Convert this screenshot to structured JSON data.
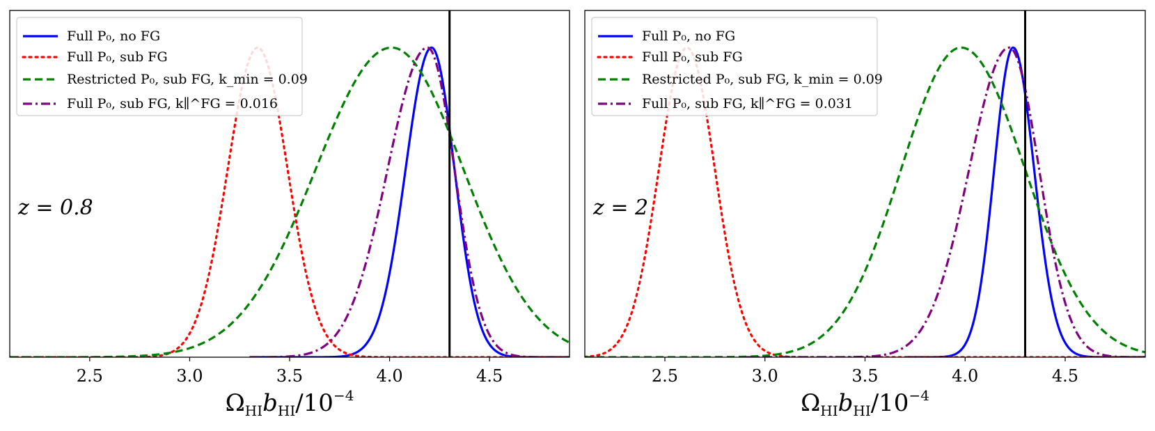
{
  "chart_data": [
    {
      "type": "line",
      "title": "",
      "xlabel": "Ω_HI b_HI / 10^-4",
      "xlabel_parts": {
        "main": "Ω",
        "sub1": "HI",
        "mid": "b",
        "sub2": "HI",
        "tail": "/10",
        "sup": "−4"
      },
      "ylabel": "",
      "xlim": [
        2.1,
        4.9
      ],
      "ylim": [
        0,
        1.12
      ],
      "xticks": [
        2.5,
        3.0,
        3.5,
        4.0,
        4.5
      ],
      "xtick_labels": [
        "2.5",
        "3.0",
        "3.5",
        "4.0",
        "4.5"
      ],
      "annotation": "z = 0.8",
      "vline": 4.3,
      "legend_position": "upper-left",
      "series": [
        {
          "name": "Full P0, no FG",
          "label": "Full P₀, no FG",
          "color": "#0000ff",
          "dash": "solid",
          "peak": 4.21,
          "sigma_left": 0.13,
          "sigma_right": 0.115,
          "height": 1.0,
          "min_x": 3.3
        },
        {
          "name": "Full P0, sub FG",
          "label": "Full P₀, sub FG",
          "color": "#ff0000",
          "dash": "dotted",
          "peak": 3.34,
          "sigma_left": 0.15,
          "sigma_right": 0.15,
          "height": 1.0,
          "min_x": 2.1
        },
        {
          "name": "Restricted P0, sub FG, kmin = 0.09",
          "label": "Restricted P₀, sub FG, k_min = 0.09",
          "color": "#008000",
          "dash": "dashed",
          "peak": 4.01,
          "sigma_left": 0.38,
          "sigma_right": 0.36,
          "height": 1.0,
          "min_x": 2.1
        },
        {
          "name": "Full P0, sub FG, k_par^FG = 0.016",
          "label": "Full P₀, sub FG, k∥^FG = 0.016",
          "color": "#800080",
          "dash": "dashdot",
          "peak": 4.19,
          "sigma_left": 0.2,
          "sigma_right": 0.135,
          "height": 1.0,
          "min_x": 3.3
        }
      ]
    },
    {
      "type": "line",
      "title": "",
      "xlabel": "Ω_HI b_HI / 10^-4",
      "xlabel_parts": {
        "main": "Ω",
        "sub1": "HI",
        "mid": "b",
        "sub2": "HI",
        "tail": "/10",
        "sup": "−4"
      },
      "ylabel": "",
      "xlim": [
        2.1,
        4.9
      ],
      "ylim": [
        0,
        1.12
      ],
      "xticks": [
        2.5,
        3.0,
        3.5,
        4.0,
        4.5
      ],
      "xtick_labels": [
        "2.5",
        "3.0",
        "3.5",
        "4.0",
        "4.5"
      ],
      "annotation": "z = 2",
      "vline": 4.3,
      "legend_position": "upper-left",
      "series": [
        {
          "name": "Full P0, no FG",
          "label": "Full P₀, no FG",
          "color": "#0000ff",
          "dash": "solid",
          "peak": 4.24,
          "sigma_left": 0.095,
          "sigma_right": 0.105,
          "height": 1.0,
          "min_x": 3.7
        },
        {
          "name": "Full P0, sub FG",
          "label": "Full P₀, sub FG",
          "color": "#ff0000",
          "dash": "dotted",
          "peak": 2.61,
          "sigma_left": 0.14,
          "sigma_right": 0.14,
          "height": 1.0,
          "min_x": 2.1
        },
        {
          "name": "Restricted P0, sub FG, kmin = 0.09",
          "label": "Restricted P₀, sub FG, k_min = 0.09",
          "color": "#008000",
          "dash": "dashed",
          "peak": 3.98,
          "sigma_left": 0.3,
          "sigma_right": 0.32,
          "height": 1.0,
          "min_x": 2.1
        },
        {
          "name": "Full P0, sub FG, k_par^FG = 0.031",
          "label": "Full P₀, sub FG, k∥^FG = 0.031",
          "color": "#800080",
          "dash": "dashdot",
          "peak": 4.22,
          "sigma_left": 0.2,
          "sigma_right": 0.15,
          "height": 1.0,
          "min_x": 2.9
        }
      ]
    }
  ]
}
